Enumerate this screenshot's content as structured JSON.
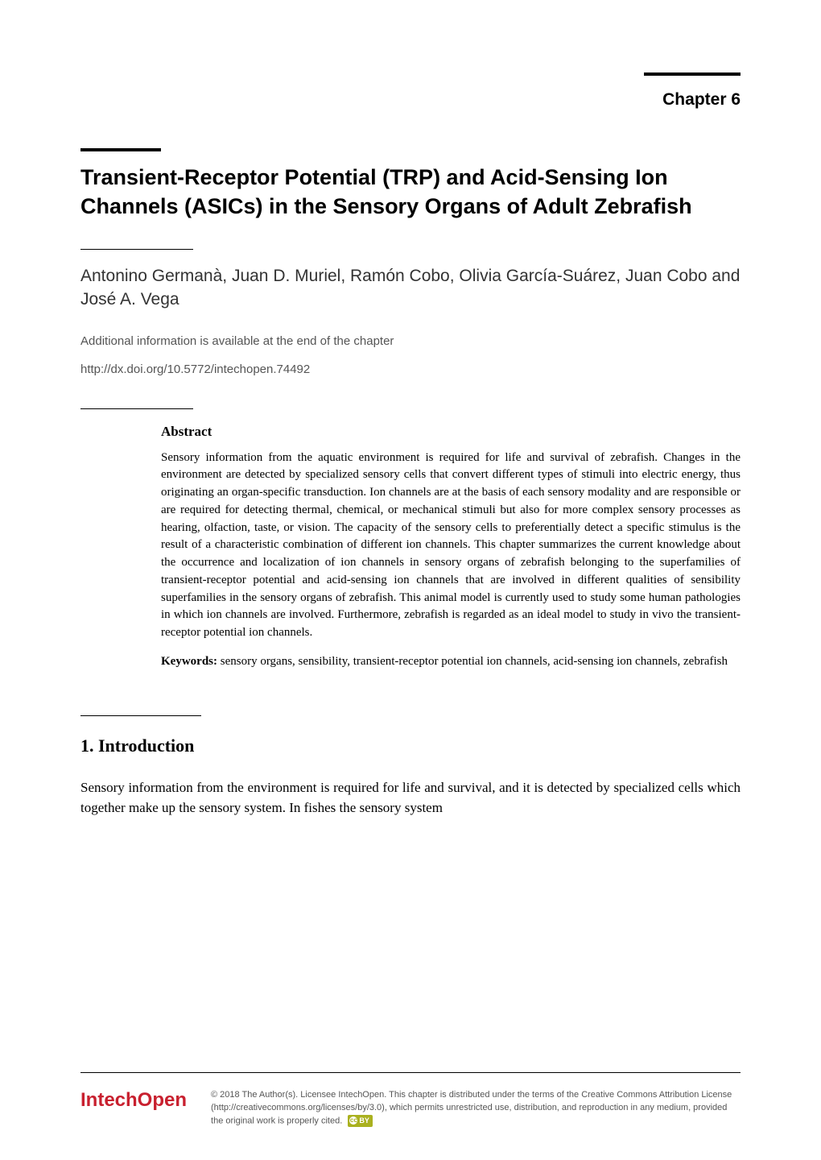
{
  "chapter_label": "Chapter 6",
  "title": "Transient-Receptor Potential (TRP) and Acid-Sensing Ion Channels (ASICs) in the Sensory Organs of Adult Zebrafish",
  "authors": "Antonino Germanà, Juan D. Muriel, Ramón Cobo, Olivia García-Suárez, Juan Cobo and José A. Vega",
  "additional_info": "Additional information is available at the end of the chapter",
  "doi": "http://dx.doi.org/10.5772/intechopen.74492",
  "abstract": {
    "heading": "Abstract",
    "body": "Sensory information from the aquatic environment is required for life and survival of zebrafish. Changes in the environment are detected by specialized sensory cells that convert different types of stimuli into electric energy, thus originating an organ-specific transduction. Ion channels are at the basis of each sensory modality and are responsible or are required for detecting thermal, chemical, or mechanical stimuli but also for more complex sensory processes as hearing, olfaction, taste, or vision. The capacity of the sensory cells to preferentially detect a specific stimulus is the result of a characteristic combination of different ion channels. This chapter summarizes the current knowledge about the occurrence and localization of ion channels in sensory organs of zebrafish belonging to the superfamilies of transient-receptor potential and acid-sensing ion channels that are involved in different qualities of sensibility superfamilies in the sensory organs of zebrafish. This animal model is currently used to study some human pathologies in which ion channels are involved. Furthermore, zebrafish is regarded as an ideal model to study in vivo the transient-receptor potential ion channels.",
    "keywords_label": "Keywords:",
    "keywords": " sensory organs, sensibility, transient-receptor potential ion channels, acid-sensing ion channels, zebrafish"
  },
  "section": {
    "heading": "1. Introduction",
    "body": "Sensory information from the environment is required for life and survival, and it is detected by specialized cells which together make up the sensory system. In fishes the sensory system"
  },
  "footer": {
    "logo": "IntechOpen",
    "license": "© 2018 The Author(s). Licensee IntechOpen. This chapter is distributed under the terms of the Creative Commons Attribution License (http://creativecommons.org/licenses/by/3.0), which permits unrestricted use, distribution, and reproduction in any medium, provided the original work is properly cited.",
    "cc_text": "BY"
  },
  "style": {
    "page_bg": "#ffffff",
    "text_color": "#000000",
    "logo_color": "#c8202f",
    "badge_bg": "#aab11f"
  }
}
